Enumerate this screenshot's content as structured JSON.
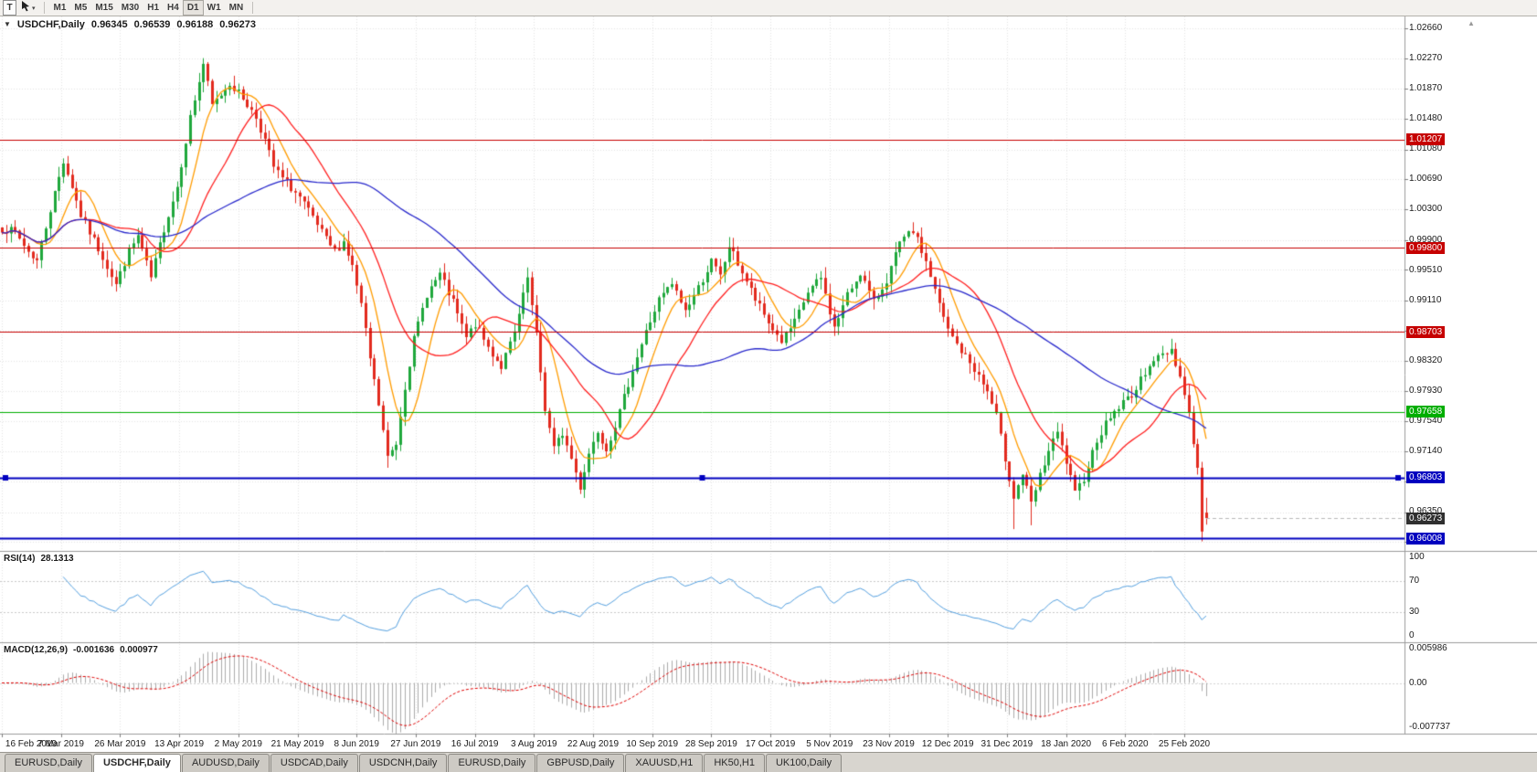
{
  "toolbar": {
    "t_button": "T",
    "cursor_tool_icon": "annotation-cursor",
    "timeframes": [
      "M1",
      "M5",
      "M15",
      "M30",
      "H1",
      "H4",
      "D1",
      "W1",
      "MN"
    ],
    "active_timeframe": "D1"
  },
  "chart_header": {
    "marker": "▼",
    "symbol": "USDCHF,Daily",
    "open": "0.96345",
    "high": "0.96539",
    "low": "0.96188",
    "close": "0.96273"
  },
  "rsi_panel": {
    "label": "RSI(14)",
    "value": "28.1313",
    "axis_labels": [
      "100",
      "70",
      "30",
      "0"
    ]
  },
  "macd_panel": {
    "label": "MACD(12,26,9)",
    "value_main": "-0.001636",
    "value_signal": "0.000977",
    "axis_labels": [
      "0.005986",
      "0.00",
      "-0.007737"
    ]
  },
  "level_badges": [
    {
      "value": "1.01207",
      "color": "#c60000"
    },
    {
      "value": "0.99800",
      "color": "#c60000"
    },
    {
      "value": "0.98703",
      "color": "#c60000"
    },
    {
      "value": "0.97658",
      "color": "#00ae00"
    },
    {
      "value": "0.96803",
      "color": "#0000bf"
    },
    {
      "value": "0.96008",
      "color": "#0000bf"
    }
  ],
  "current_price_badge": {
    "value": "0.96273",
    "color": "#2f2f2f"
  },
  "tabs": [
    {
      "label": "EURUSD,Daily",
      "active": false
    },
    {
      "label": "USDCHF,Daily",
      "active": true
    },
    {
      "label": "AUDUSD,Daily",
      "active": false
    },
    {
      "label": "USDCAD,Daily",
      "active": false
    },
    {
      "label": "USDCNH,Daily",
      "active": false
    },
    {
      "label": "EURUSD,Daily",
      "active": false
    },
    {
      "label": "GBPUSD,Daily",
      "active": false
    },
    {
      "label": "XAUUSD,H1",
      "active": false
    },
    {
      "label": "HK50,H1",
      "active": false
    },
    {
      "label": "UK100,Daily",
      "active": false
    }
  ],
  "chart_data": {
    "type": "candlestick",
    "symbol": "USDCHF",
    "timeframe": "Daily",
    "current_price": 0.96273,
    "last_candle": {
      "o": 0.96345,
      "h": 0.96539,
      "l": 0.96188,
      "c": 0.96273
    },
    "bars_total": 276,
    "bars_per_label": 13.5,
    "price_axis_labels": [
      "1.02660",
      "1.02270",
      "1.01870",
      "1.01480",
      "1.01080",
      "1.00690",
      "1.00300",
      "0.99900",
      "0.99510",
      "0.99110",
      "0.98720",
      "0.98320",
      "0.97930",
      "0.97540",
      "0.97140",
      "0.96750",
      "0.96350",
      "0.95960"
    ],
    "date_labels": [
      "16 Feb 2019",
      "7 Mar 2019",
      "26 Mar 2019",
      "13 Apr 2019",
      "2 May 2019",
      "21 May 2019",
      "8 Jun 2019",
      "27 Jun 2019",
      "16 Jul 2019",
      "3 Aug 2019",
      "22 Aug 2019",
      "10 Sep 2019",
      "28 Sep 2019",
      "17 Oct 2019",
      "5 Nov 2019",
      "23 Nov 2019",
      "12 Dec 2019",
      "31 Dec 2019",
      "18 Jan 2020",
      "6 Feb 2020",
      "25 Feb 2020"
    ],
    "horizontal_levels": [
      {
        "price": 1.01207,
        "color": "#c60000",
        "width": 1,
        "kind": "resistance",
        "selected": false
      },
      {
        "price": 0.998,
        "color": "#c60000",
        "width": 1,
        "kind": "resistance",
        "selected": false
      },
      {
        "price": 0.98703,
        "color": "#c60000",
        "width": 1,
        "kind": "resistance",
        "selected": false
      },
      {
        "price": 0.97658,
        "color": "#00ae00",
        "width": 1,
        "kind": "level",
        "selected": false
      },
      {
        "price": 0.96803,
        "color": "#0000bf",
        "width": 2,
        "kind": "support",
        "selected": true
      },
      {
        "price": 0.96008,
        "color": "#0000bf",
        "width": 2,
        "kind": "support",
        "selected": false
      }
    ],
    "waypoints": [
      [
        0,
        1.0005
      ],
      [
        3,
        1.0
      ],
      [
        6,
        0.9975
      ],
      [
        8,
        0.9963
      ],
      [
        11,
        1.003
      ],
      [
        14,
        1.0093
      ],
      [
        16,
        1.006
      ],
      [
        18,
        1.0022
      ],
      [
        20,
        1.0
      ],
      [
        23,
        0.9968
      ],
      [
        26,
        0.9932
      ],
      [
        29,
        0.9975
      ],
      [
        31,
        0.9995
      ],
      [
        34,
        0.994
      ],
      [
        37,
        1.0005
      ],
      [
        40,
        1.006
      ],
      [
        43,
        1.015
      ],
      [
        46,
        1.022
      ],
      [
        48,
        1.0165
      ],
      [
        50,
        1.018
      ],
      [
        52,
        1.0195
      ],
      [
        55,
        1.0175
      ],
      [
        58,
        1.015
      ],
      [
        60,
        1.012
      ],
      [
        62,
        1.0085
      ],
      [
        64,
        1.007
      ],
      [
        66,
        1.0058
      ],
      [
        68,
        1.0045
      ],
      [
        71,
        1.0018
      ],
      [
        74,
        0.999
      ],
      [
        76,
        0.9975
      ],
      [
        78,
        0.9988
      ],
      [
        80,
        0.9955
      ],
      [
        82,
        0.9905
      ],
      [
        84,
        0.9835
      ],
      [
        86,
        0.9775
      ],
      [
        88,
        0.9706
      ],
      [
        90,
        0.9725
      ],
      [
        92,
        0.98
      ],
      [
        94,
        0.986
      ],
      [
        97,
        0.992
      ],
      [
        100,
        0.9945
      ],
      [
        103,
        0.9908
      ],
      [
        106,
        0.9862
      ],
      [
        108,
        0.988
      ],
      [
        111,
        0.985
      ],
      [
        114,
        0.9825
      ],
      [
        117,
        0.9868
      ],
      [
        120,
        0.994
      ],
      [
        122,
        0.9865
      ],
      [
        124,
        0.977
      ],
      [
        126,
        0.9718
      ],
      [
        128,
        0.9738
      ],
      [
        130,
        0.9705
      ],
      [
        132,
        0.9668
      ],
      [
        134,
        0.9712
      ],
      [
        136,
        0.9742
      ],
      [
        138,
        0.9718
      ],
      [
        141,
        0.9765
      ],
      [
        144,
        0.9822
      ],
      [
        147,
        0.987
      ],
      [
        150,
        0.9912
      ],
      [
        153,
        0.9932
      ],
      [
        156,
        0.9898
      ],
      [
        159,
        0.9928
      ],
      [
        162,
        0.9962
      ],
      [
        164,
        0.9942
      ],
      [
        166,
        0.9982
      ],
      [
        169,
        0.9948
      ],
      [
        172,
        0.9912
      ],
      [
        175,
        0.9882
      ],
      [
        178,
        0.9858
      ],
      [
        181,
        0.9882
      ],
      [
        184,
        0.9922
      ],
      [
        187,
        0.994
      ],
      [
        190,
        0.9875
      ],
      [
        193,
        0.9918
      ],
      [
        196,
        0.9948
      ],
      [
        199,
        0.9908
      ],
      [
        202,
        0.9938
      ],
      [
        205,
        0.9985
      ],
      [
        208,
        1.0002
      ],
      [
        211,
        0.9962
      ],
      [
        214,
        0.9905
      ],
      [
        216,
        0.9872
      ],
      [
        219,
        0.9845
      ],
      [
        222,
        0.9822
      ],
      [
        225,
        0.9792
      ],
      [
        227,
        0.976
      ],
      [
        229,
        0.9705
      ],
      [
        231,
        0.9655
      ],
      [
        233,
        0.9685
      ],
      [
        235,
        0.9645
      ],
      [
        237,
        0.9682
      ],
      [
        239,
        0.9715
      ],
      [
        241,
        0.9738
      ],
      [
        243,
        0.97
      ],
      [
        245,
        0.9658
      ],
      [
        247,
        0.968
      ],
      [
        250,
        0.973
      ],
      [
        253,
        0.976
      ],
      [
        256,
        0.9778
      ],
      [
        259,
        0.9795
      ],
      [
        262,
        0.983
      ],
      [
        265,
        0.984
      ],
      [
        267,
        0.9848
      ],
      [
        269,
        0.9812
      ],
      [
        271,
        0.9765
      ],
      [
        273,
        0.969
      ],
      [
        274,
        0.9612
      ],
      [
        275,
        0.96273
      ]
    ],
    "key_extremes": [
      {
        "bar": 46,
        "high": 1.0226
      },
      {
        "bar": 88,
        "low": 0.9693
      },
      {
        "bar": 132,
        "low": 0.9659
      },
      {
        "bar": 231,
        "low": 0.9613
      },
      {
        "bar": 235,
        "low": 0.9618
      },
      {
        "bar": 267,
        "high": 0.9848
      },
      {
        "bar": 274,
        "low": 0.9597
      }
    ],
    "moving_averages": [
      {
        "period": 8,
        "color": "#ff9c00"
      },
      {
        "period": 20,
        "color": "#ff2020"
      },
      {
        "period": 55,
        "color": "#2929cc"
      }
    ],
    "rsi": {
      "period": 14,
      "current": 28.1313,
      "levels": [
        70,
        30
      ],
      "range": [
        0,
        100
      ],
      "color": "#54a0e0"
    },
    "macd": {
      "fast": 12,
      "slow": 26,
      "signal_period": 9,
      "current_main": -0.001636,
      "current_signal": 0.000977,
      "axis_max": 0.005986,
      "axis_min": -0.007737,
      "histogram_color": "#ababab",
      "signal_color": "#e00000"
    },
    "candle_colors": {
      "bull": "#1fa83c",
      "bear": "#e22a1e"
    }
  }
}
